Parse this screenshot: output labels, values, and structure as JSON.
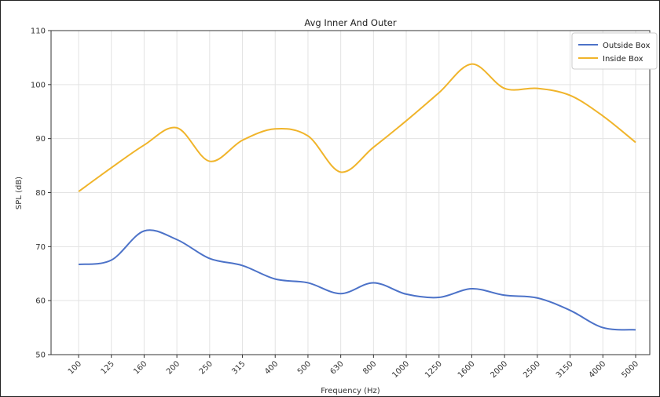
{
  "chart_data": {
    "type": "line",
    "title": "Avg Inner And Outer",
    "xlabel": "Frequency (Hz)",
    "ylabel": "SPL (dB)",
    "categories": [
      "100",
      "125",
      "160",
      "200",
      "250",
      "315",
      "400",
      "500",
      "630",
      "800",
      "1000",
      "1250",
      "1600",
      "2000",
      "2500",
      "3150",
      "4000",
      "5000"
    ],
    "ylim": [
      50,
      110
    ],
    "yticks": [
      50,
      60,
      70,
      80,
      90,
      100,
      110
    ],
    "grid": true,
    "legend_position": "top-right",
    "series": [
      {
        "name": "Outside Box",
        "color": "#4c72c8",
        "values": [
          66.7,
          67.5,
          72.9,
          71.3,
          67.8,
          66.5,
          64.0,
          63.3,
          61.3,
          63.3,
          61.2,
          60.6,
          62.2,
          61.0,
          60.5,
          58.2,
          55.0,
          54.6
        ]
      },
      {
        "name": "Inside Box",
        "color": "#f0b42a",
        "values": [
          80.2,
          84.6,
          88.8,
          92.0,
          85.8,
          89.7,
          91.8,
          90.5,
          83.8,
          88.4,
          93.3,
          98.5,
          103.8,
          99.3,
          99.3,
          98.0,
          94.2,
          89.3
        ]
      }
    ]
  }
}
